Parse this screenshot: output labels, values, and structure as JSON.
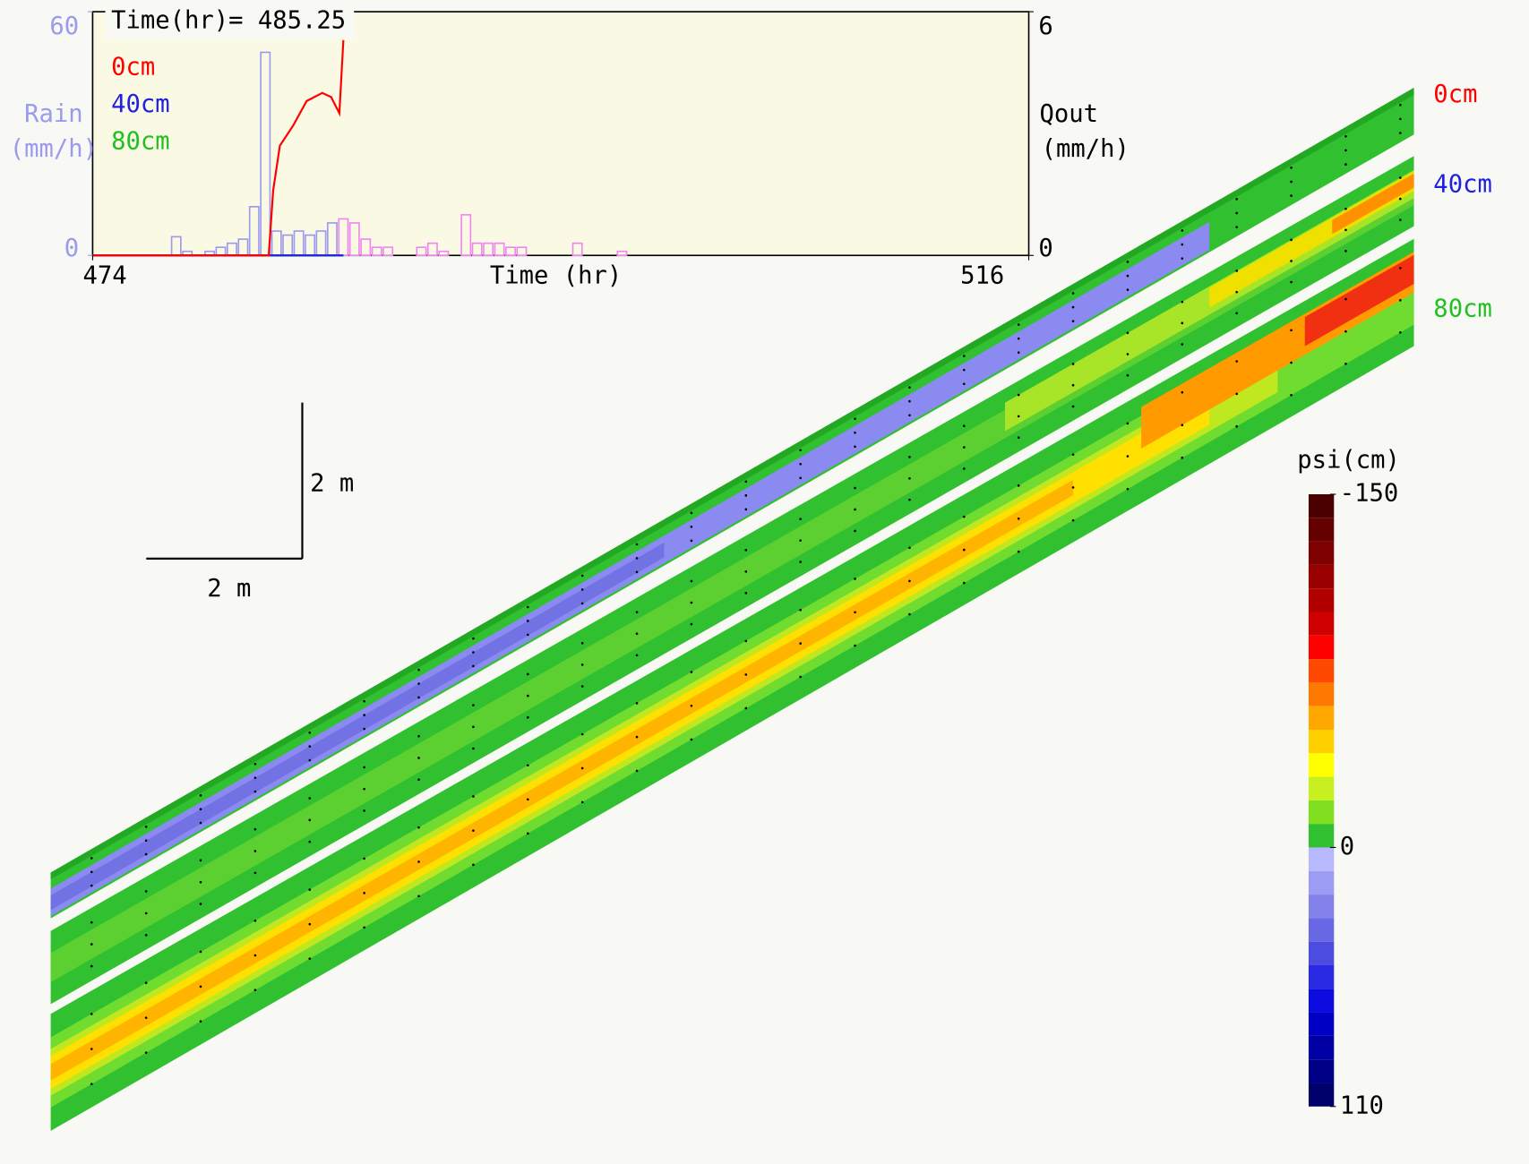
{
  "chart_data": {
    "type": "combo",
    "title": "Time(hr)= 485.25",
    "time": 485.25,
    "xlabel": "Time (hr)",
    "ylabel": [
      "Rain",
      "(mm/h)"
    ],
    "y2label": [
      "Qout",
      "(mm/h)"
    ],
    "xlim": [
      474,
      516
    ],
    "xticks": [
      474,
      516
    ],
    "ylim": [
      0,
      60
    ],
    "yticks": [
      0,
      60
    ],
    "y2lim": [
      0,
      6
    ],
    "y2ticks": [
      0,
      6
    ],
    "background": "#fafae4",
    "rain": {
      "color": "#9a9aee",
      "future_color": "#ee88ee",
      "bins": [
        477,
        477.5,
        478,
        478.5,
        479,
        479.5,
        480,
        480.5,
        481,
        481.5,
        482,
        482.5,
        483,
        483.5,
        484,
        484.5,
        485,
        485.5,
        486,
        486.5,
        487,
        487.5,
        488,
        488.5,
        489,
        489.5,
        490,
        490.5,
        491,
        491.5,
        492,
        492.5,
        493,
        493.5,
        494,
        494.5,
        495,
        495.5,
        496,
        496.5,
        497,
        497.5,
        498,
        498.5,
        499
      ],
      "values": [
        0,
        4.6,
        1,
        0,
        1,
        2,
        3,
        4,
        12,
        50,
        6,
        5,
        6,
        5,
        6,
        8,
        9,
        8,
        4,
        2,
        2,
        0,
        0,
        2,
        3,
        1,
        0,
        10,
        3,
        3,
        3,
        2,
        2,
        0,
        0,
        0,
        0,
        3,
        0,
        0,
        0,
        1,
        0,
        0
      ]
    },
    "x": [
      474,
      478,
      481.9,
      482.1,
      482.4,
      483,
      483.6,
      484.3,
      484.7,
      485.07,
      485.25
    ],
    "series": [
      {
        "name": "0cm",
        "color": "#ff0000",
        "axis": "y2",
        "values": [
          0,
          0,
          0,
          1.6,
          2.7,
          3.2,
          3.8,
          4.0,
          3.9,
          3.5,
          5.3
        ]
      },
      {
        "name": "40cm",
        "color": "#2020e0",
        "axis": "y2",
        "values": [
          0,
          0,
          0,
          0,
          0,
          0,
          0,
          0,
          0,
          0,
          0
        ]
      },
      {
        "name": "80cm",
        "color": "#20c020",
        "axis": "y2",
        "values": [
          0,
          0,
          0,
          0,
          0,
          0,
          0,
          0,
          0,
          0,
          0
        ]
      }
    ]
  },
  "scale_bar": {
    "vertical_label": "2 m",
    "horizontal_label": "2 m"
  },
  "colorbar": {
    "title": "psi(cm)",
    "lim": [
      -150,
      110
    ],
    "ticks": [
      -150,
      0,
      110
    ],
    "colors": [
      "#4a0000",
      "#640000",
      "#7e0000",
      "#980000",
      "#b20000",
      "#d00000",
      "#ff0000",
      "#ff4800",
      "#ff7800",
      "#ffa800",
      "#ffd000",
      "#ffff00",
      "#c8f020",
      "#80e020",
      "#30c030",
      "#b8b8ff",
      "#9c9cf4",
      "#8282ea",
      "#6868e4",
      "#4c4ce0",
      "#2a2ae4",
      "#0c0ce0",
      "#0000c4",
      "#0000a4",
      "#000086",
      "#00006a"
    ]
  }
}
